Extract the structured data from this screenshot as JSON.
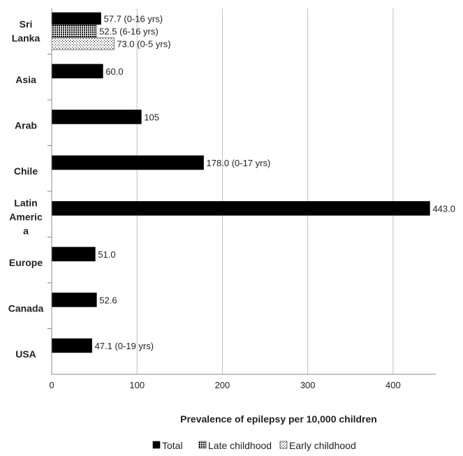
{
  "chart_data": {
    "type": "bar",
    "orientation": "horizontal",
    "xlabel": "Prevalence of epilepsy per 10,000 children",
    "xlim": [
      0,
      450
    ],
    "xticks": [
      0,
      100,
      200,
      300,
      400
    ],
    "grid": "vertical",
    "legend_position": "bottom",
    "categories": [
      {
        "label_lines": [
          "Sri",
          "Lanka"
        ],
        "bars": [
          {
            "series": "Total",
            "value": 57.7,
            "label": "57.7 (0-16 yrs)"
          },
          {
            "series": "Late childhood",
            "value": 52.5,
            "label": "52.5 (6-16 yrs)"
          },
          {
            "series": "Early childhood",
            "value": 73.0,
            "label": "73.0 (0-5 yrs)"
          }
        ]
      },
      {
        "label_lines": [
          "Asia"
        ],
        "bars": [
          {
            "series": "Total",
            "value": 60.0,
            "label": "60.0"
          }
        ]
      },
      {
        "label_lines": [
          "Arab"
        ],
        "bars": [
          {
            "series": "Total",
            "value": 105,
            "label": "105"
          }
        ]
      },
      {
        "label_lines": [
          "Chile"
        ],
        "bars": [
          {
            "series": "Total",
            "value": 178.0,
            "label": "178.0 (0-17 yrs)"
          }
        ]
      },
      {
        "label_lines": [
          "Latin",
          "Americ",
          "a"
        ],
        "bars": [
          {
            "series": "Total",
            "value": 443.0,
            "label": "443.0"
          }
        ]
      },
      {
        "label_lines": [
          "Europe"
        ],
        "bars": [
          {
            "series": "Total",
            "value": 51.0,
            "label": "51.0"
          }
        ]
      },
      {
        "label_lines": [
          "Canada"
        ],
        "bars": [
          {
            "series": "Total",
            "value": 52.6,
            "label": "52.6"
          }
        ]
      },
      {
        "label_lines": [
          "USA"
        ],
        "bars": [
          {
            "series": "Total",
            "value": 47.1,
            "label": "47.1 (0-19 yrs)"
          }
        ]
      }
    ],
    "series": [
      {
        "name": "Total",
        "fill": "solid-black"
      },
      {
        "name": "Late childhood",
        "fill": "dark-checker"
      },
      {
        "name": "Early childhood",
        "fill": "light-dots"
      }
    ],
    "colors": {
      "bar": "#000000",
      "grid": "#bfbfbf",
      "axis": "#888888",
      "text": "#222222"
    }
  }
}
